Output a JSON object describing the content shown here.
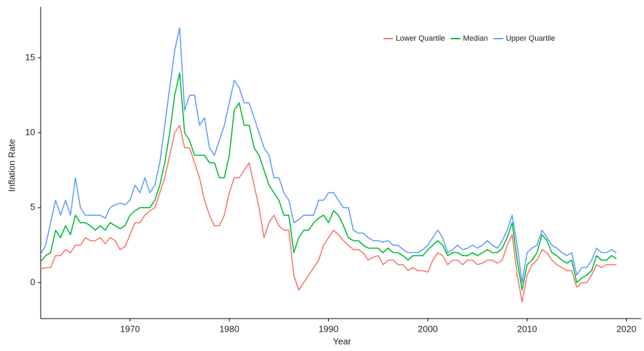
{
  "chart_data": {
    "type": "line",
    "x_label": "Year",
    "y_label": "Inflation Rate",
    "xlim": [
      1961,
      2021.5
    ],
    "ylim": [
      -2.4,
      18.4
    ],
    "xticks": [
      1970,
      1980,
      1990,
      2000,
      2010,
      2020
    ],
    "yticks": [
      0,
      5,
      10,
      15
    ],
    "grid": false,
    "legend_position": "top-right",
    "x": [
      1961,
      1961.5,
      1962,
      1962.5,
      1963,
      1963.5,
      1964,
      1964.5,
      1965,
      1965.5,
      1966,
      1966.5,
      1967,
      1967.5,
      1968,
      1968.5,
      1969,
      1969.5,
      1970,
      1970.5,
      1971,
      1971.5,
      1972,
      1972.5,
      1973,
      1973.5,
      1974,
      1974.5,
      1975,
      1975.5,
      1976,
      1976.5,
      1977,
      1977.5,
      1978,
      1978.5,
      1979,
      1979.5,
      1980,
      1980.5,
      1981,
      1981.5,
      1982,
      1982.5,
      1983,
      1983.5,
      1984,
      1984.5,
      1985,
      1985.5,
      1986,
      1986.5,
      1987,
      1987.5,
      1988,
      1988.5,
      1989,
      1989.5,
      1990,
      1990.5,
      1991,
      1991.5,
      1992,
      1992.5,
      1993,
      1993.5,
      1994,
      1994.5,
      1995,
      1995.5,
      1996,
      1996.5,
      1997,
      1997.5,
      1998,
      1998.5,
      1999,
      1999.5,
      2000,
      2000.5,
      2001,
      2001.5,
      2002,
      2002.5,
      2003,
      2003.5,
      2004,
      2004.5,
      2005,
      2005.5,
      2006,
      2006.5,
      2007,
      2007.5,
      2008,
      2008.5,
      2009,
      2009.5,
      2010,
      2010.5,
      2011,
      2011.5,
      2012,
      2012.5,
      2013,
      2013.5,
      2014,
      2014.5,
      2015,
      2015.5,
      2016,
      2016.5,
      2017,
      2017.5,
      2018,
      2018.5,
      2019
    ],
    "series": [
      {
        "name": "Lower Quartile",
        "color": "#F8766D",
        "values": [
          0.9,
          1.0,
          1.0,
          1.8,
          1.8,
          2.2,
          2.0,
          2.5,
          2.5,
          3.0,
          2.8,
          2.8,
          3.0,
          2.6,
          3.0,
          2.8,
          2.2,
          2.4,
          3.2,
          4.0,
          4.0,
          4.5,
          4.8,
          5.0,
          6.0,
          7.0,
          8.5,
          10.0,
          10.5,
          9.0,
          9.0,
          8.0,
          7.0,
          5.5,
          4.5,
          3.8,
          3.8,
          4.5,
          6.0,
          7.0,
          7.0,
          7.5,
          8.0,
          6.5,
          5.0,
          3.0,
          4.0,
          4.5,
          3.8,
          3.5,
          3.5,
          0.5,
          -0.5,
          0.0,
          0.5,
          1.0,
          1.5,
          2.5,
          3.0,
          3.5,
          3.2,
          2.8,
          2.5,
          2.2,
          2.2,
          2.0,
          1.5,
          1.7,
          1.8,
          1.2,
          1.5,
          1.5,
          1.2,
          1.2,
          0.8,
          1.0,
          0.8,
          0.8,
          0.7,
          1.5,
          2.0,
          1.8,
          1.2,
          1.5,
          1.5,
          1.2,
          1.5,
          1.5,
          1.2,
          1.3,
          1.5,
          1.5,
          1.3,
          1.5,
          2.5,
          3.2,
          0.5,
          -1.3,
          0.5,
          1.2,
          1.5,
          2.2,
          2.0,
          1.5,
          1.2,
          1.0,
          0.8,
          0.8,
          -0.3,
          0.0,
          0.0,
          0.5,
          1.2,
          1.0,
          1.2,
          1.2,
          1.2
        ]
      },
      {
        "name": "Median",
        "color": "#00BA38",
        "values": [
          1.4,
          1.8,
          2.0,
          3.5,
          3.0,
          3.8,
          3.2,
          4.5,
          4.0,
          4.0,
          3.8,
          3.5,
          3.8,
          3.5,
          4.0,
          3.8,
          3.6,
          3.8,
          4.5,
          4.8,
          5.0,
          5.0,
          5.0,
          5.5,
          6.5,
          8.0,
          10.0,
          12.5,
          14.0,
          10.0,
          9.5,
          8.5,
          8.5,
          8.5,
          8.0,
          8.0,
          7.0,
          7.0,
          8.5,
          11.5,
          12.0,
          10.5,
          10.5,
          9.0,
          8.5,
          7.5,
          6.5,
          6.0,
          5.5,
          4.5,
          4.5,
          2.0,
          3.0,
          3.5,
          3.5,
          4.0,
          4.3,
          4.5,
          4.0,
          4.8,
          4.5,
          3.8,
          3.0,
          2.8,
          2.8,
          2.5,
          2.3,
          2.3,
          2.3,
          2.0,
          2.3,
          2.0,
          2.0,
          1.8,
          1.5,
          1.8,
          1.8,
          1.8,
          2.2,
          2.5,
          2.8,
          2.5,
          1.8,
          2.0,
          2.0,
          1.8,
          1.8,
          2.0,
          1.8,
          2.0,
          2.2,
          2.0,
          2.0,
          2.3,
          3.0,
          4.0,
          1.5,
          -0.5,
          1.2,
          1.5,
          2.0,
          3.2,
          2.8,
          2.0,
          1.8,
          1.5,
          1.3,
          1.5,
          0.0,
          0.3,
          0.5,
          0.8,
          1.8,
          1.5,
          1.5,
          1.8,
          1.6
        ]
      },
      {
        "name": "Upper Quartile",
        "color": "#619CFF",
        "values": [
          1.9,
          2.5,
          4.0,
          5.5,
          4.5,
          5.5,
          4.5,
          7.0,
          5.0,
          4.5,
          4.5,
          4.5,
          4.5,
          4.3,
          5.0,
          5.2,
          5.3,
          5.2,
          5.5,
          6.5,
          6.0,
          7.0,
          6.0,
          6.5,
          8.0,
          10.5,
          13.0,
          15.5,
          17.0,
          11.5,
          12.5,
          12.5,
          10.5,
          11.0,
          9.0,
          8.5,
          9.5,
          10.5,
          12.0,
          13.5,
          13.0,
          12.0,
          12.0,
          11.0,
          10.0,
          9.0,
          8.5,
          7.0,
          7.0,
          6.0,
          5.5,
          4.0,
          4.2,
          4.5,
          4.5,
          4.5,
          5.5,
          5.5,
          6.0,
          6.0,
          5.5,
          5.0,
          5.0,
          3.5,
          3.3,
          3.3,
          3.0,
          2.8,
          2.8,
          2.7,
          2.8,
          2.5,
          2.5,
          2.2,
          2.0,
          2.0,
          2.0,
          2.2,
          2.5,
          3.0,
          3.5,
          3.0,
          2.0,
          2.2,
          2.5,
          2.2,
          2.3,
          2.5,
          2.3,
          2.5,
          2.8,
          2.5,
          2.3,
          2.8,
          3.5,
          4.5,
          2.5,
          0.0,
          2.0,
          2.3,
          2.5,
          3.5,
          3.0,
          2.5,
          2.3,
          2.0,
          1.8,
          2.0,
          0.5,
          1.0,
          1.0,
          1.5,
          2.3,
          2.0,
          2.0,
          2.2,
          2.0
        ]
      }
    ]
  }
}
